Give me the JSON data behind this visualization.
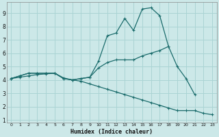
{
  "xlabel": "Humidex (Indice chaleur)",
  "bg_color": "#cce8e8",
  "line_color": "#1a6b6b",
  "grid_color": "#aad4d4",
  "xlim": [
    -0.5,
    23.5
  ],
  "ylim": [
    0.8,
    9.8
  ],
  "yticks": [
    1,
    2,
    3,
    4,
    5,
    6,
    7,
    8,
    9
  ],
  "xticks": [
    0,
    1,
    2,
    3,
    4,
    5,
    6,
    7,
    8,
    9,
    10,
    11,
    12,
    13,
    14,
    15,
    16,
    17,
    18,
    19,
    20,
    21,
    22,
    23
  ],
  "line1_x": [
    0,
    1,
    2,
    3,
    4,
    5,
    6,
    7,
    8,
    9,
    10,
    11,
    12,
    13,
    14,
    15,
    16,
    17,
    18,
    19,
    20,
    21,
    22,
    23
  ],
  "line1_y": [
    4.1,
    4.3,
    4.5,
    4.5,
    4.5,
    4.5,
    4.1,
    4.0,
    4.1,
    4.2,
    5.4,
    7.3,
    7.5,
    8.6,
    7.7,
    9.3,
    9.4,
    8.8,
    6.5,
    null,
    null,
    null,
    null,
    null
  ],
  "line2_x": [
    0,
    1,
    2,
    3,
    4,
    5,
    6,
    7,
    8,
    9,
    10,
    11,
    12,
    13,
    14,
    15,
    16,
    17,
    18,
    19,
    20,
    21,
    22,
    23
  ],
  "line2_y": [
    4.1,
    4.3,
    4.5,
    4.5,
    4.5,
    4.5,
    4.1,
    4.0,
    4.1,
    4.2,
    4.9,
    5.3,
    5.5,
    5.5,
    5.5,
    5.8,
    6.0,
    6.2,
    6.5,
    5.0,
    4.1,
    2.9,
    null,
    null
  ],
  "line3_x": [
    0,
    1,
    2,
    3,
    4,
    5,
    6,
    7,
    8,
    9,
    10,
    11,
    12,
    13,
    14,
    15,
    16,
    17,
    18,
    19,
    20,
    21,
    22,
    23
  ],
  "line3_y": [
    4.1,
    4.2,
    4.3,
    4.4,
    4.45,
    4.5,
    4.15,
    4.0,
    3.9,
    3.7,
    3.5,
    3.3,
    3.1,
    2.9,
    2.7,
    2.5,
    2.3,
    2.1,
    1.9,
    1.7,
    1.7,
    1.7,
    1.5,
    1.4
  ]
}
